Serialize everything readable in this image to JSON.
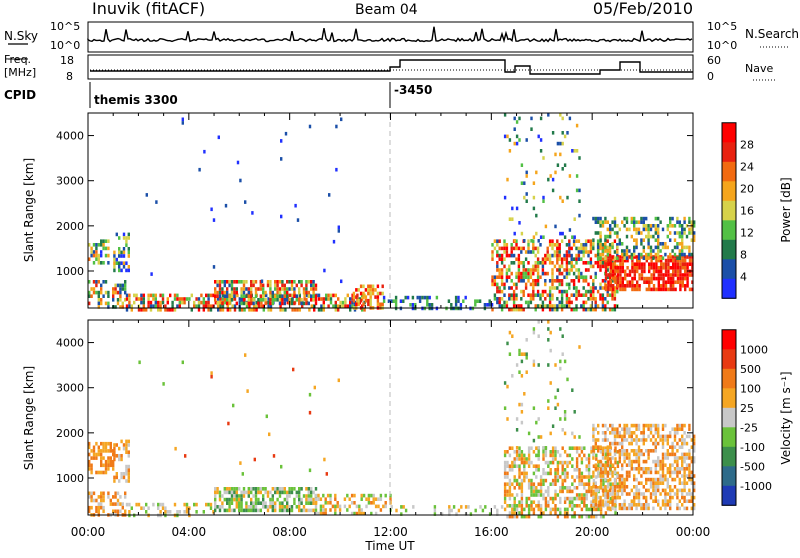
{
  "header": {
    "station_title": "Inuvik (fitACF)",
    "beam": "Beam 04",
    "date": "05/Feb/2010"
  },
  "top_panels": {
    "nsky_label": "N.Sky",
    "nsearch_label": "N.Search",
    "freq_label_line1": "Freq.",
    "freq_label_line2": "[MHz]",
    "nave_label": "Nave",
    "cpid_label": "CPID",
    "nsky_ticks": [
      "10^5",
      "10^0"
    ],
    "nsearch_ticks": [
      "10^5",
      "10^0"
    ],
    "freq_ticks": [
      "18",
      "8"
    ],
    "nave_ticks": [
      "60",
      "0"
    ],
    "cpid_entries": [
      {
        "time_hr": 0.0,
        "label": "themis 3300"
      },
      {
        "time_hr": 12.0,
        "label": "-3450"
      }
    ]
  },
  "chart_data": [
    {
      "type": "heatmap",
      "title": "",
      "xlabel": "",
      "ylabel": "Slant Range [km]",
      "xlim_hours": [
        0,
        24
      ],
      "ylim_km": [
        180,
        4500
      ],
      "x_tick_labels": [
        "00:00",
        "04:00",
        "08:00",
        "12:00",
        "16:00",
        "20:00",
        "00:00"
      ],
      "y_ticks": [
        1000,
        2000,
        3000,
        4000
      ],
      "colorbar": {
        "label": "Power [dB]",
        "ticks": [
          "28",
          "24",
          "20",
          "16",
          "12",
          "8",
          "4"
        ],
        "colors": [
          "#2030ff",
          "#1b4fa8",
          "#227a4a",
          "#52c045",
          "#d6d24a",
          "#f5a51c",
          "#f26a10",
          "#e8210f",
          "#ff0000"
        ]
      },
      "colorbar_type": "power",
      "scatter_regions": [
        {
          "t0": 0.0,
          "t1": 0.8,
          "r0": 1150,
          "r1": 1700,
          "density": 0.6,
          "palette": [
            0,
            1,
            2,
            3,
            4,
            5,
            6
          ]
        },
        {
          "t0": 1.0,
          "t1": 1.6,
          "r0": 1000,
          "r1": 1850,
          "density": 0.5,
          "palette": [
            0,
            1,
            2,
            3,
            4,
            5
          ]
        },
        {
          "t0": 0.0,
          "t1": 1.5,
          "r0": 180,
          "r1": 800,
          "density": 0.5,
          "palette": [
            1,
            2,
            3,
            4,
            5,
            6,
            7
          ]
        },
        {
          "t0": 1.5,
          "t1": 11.0,
          "r0": 180,
          "r1": 500,
          "density": 0.55,
          "palette": [
            1,
            2,
            3,
            4,
            5,
            6,
            7,
            8
          ]
        },
        {
          "t0": 5.0,
          "t1": 9.0,
          "r0": 300,
          "r1": 800,
          "density": 0.7,
          "palette": [
            1,
            2,
            3,
            4,
            5,
            6,
            7,
            8
          ]
        },
        {
          "t0": 10.5,
          "t1": 11.7,
          "r0": 180,
          "r1": 700,
          "density": 0.6,
          "palette": [
            4,
            5,
            6,
            7,
            8
          ]
        },
        {
          "t0": 11.7,
          "t1": 16.0,
          "r0": 180,
          "r1": 450,
          "density": 0.35,
          "palette": [
            0,
            1,
            2,
            3
          ]
        },
        {
          "t0": 16.0,
          "t1": 21.0,
          "r0": 180,
          "r1": 1700,
          "density": 0.55,
          "palette": [
            1,
            2,
            3,
            4,
            5,
            6,
            7,
            8
          ]
        },
        {
          "t0": 16.5,
          "t1": 19.5,
          "r0": 1700,
          "r1": 4500,
          "density": 0.07,
          "palette": [
            0,
            1,
            2,
            3,
            4,
            5
          ]
        },
        {
          "t0": 20.5,
          "t1": 24.0,
          "r0": 600,
          "r1": 1350,
          "density": 0.75,
          "palette": [
            6,
            7,
            8
          ]
        },
        {
          "t0": 20.0,
          "t1": 24.0,
          "r0": 1300,
          "r1": 2200,
          "density": 0.45,
          "palette": [
            1,
            2,
            3,
            4,
            5
          ]
        },
        {
          "t0": 2.0,
          "t1": 10.0,
          "r0": 800,
          "r1": 4400,
          "density": 0.008,
          "palette": [
            0,
            1
          ]
        }
      ]
    },
    {
      "type": "heatmap",
      "title": "",
      "xlabel": "Time UT",
      "ylabel": "Slant Range [km]",
      "xlim_hours": [
        0,
        24
      ],
      "ylim_km": [
        180,
        4500
      ],
      "x_tick_labels": [
        "00:00",
        "04:00",
        "08:00",
        "12:00",
        "16:00",
        "20:00",
        "00:00"
      ],
      "y_ticks": [
        1000,
        2000,
        3000,
        4000
      ],
      "colorbar": {
        "label": "Velocity [m s⁻¹]",
        "ticks": [
          "1000",
          "500",
          "100",
          "25",
          "-25",
          "-100",
          "-500",
          "-1000"
        ],
        "colors": [
          "#1f3bb5",
          "#2e6b8a",
          "#3c8f4b",
          "#6ac23a",
          "#c8c8c8",
          "#f5a623",
          "#f07a18",
          "#e83a12",
          "#ff0000"
        ]
      },
      "colorbar_type": "velocity",
      "scatter_regions": [
        {
          "t0": 0.0,
          "t1": 1.0,
          "r0": 1100,
          "r1": 1800,
          "density": 0.6,
          "palette": [
            5,
            6
          ]
        },
        {
          "t0": 1.0,
          "t1": 1.6,
          "r0": 900,
          "r1": 1850,
          "density": 0.5,
          "palette": [
            5,
            6,
            4
          ]
        },
        {
          "t0": 0.0,
          "t1": 1.5,
          "r0": 180,
          "r1": 700,
          "density": 0.5,
          "palette": [
            5,
            6,
            4
          ]
        },
        {
          "t0": 1.5,
          "t1": 5.0,
          "r0": 180,
          "r1": 450,
          "density": 0.3,
          "palette": [
            3,
            4,
            5
          ]
        },
        {
          "t0": 5.0,
          "t1": 9.0,
          "r0": 250,
          "r1": 800,
          "density": 0.7,
          "palette": [
            2,
            3,
            4,
            5
          ]
        },
        {
          "t0": 9.0,
          "t1": 12.0,
          "r0": 180,
          "r1": 650,
          "density": 0.45,
          "palette": [
            3,
            4,
            5,
            6
          ]
        },
        {
          "t0": 12.0,
          "t1": 16.5,
          "r0": 180,
          "r1": 400,
          "density": 0.25,
          "palette": [
            3,
            4,
            5
          ]
        },
        {
          "t0": 16.5,
          "t1": 21.0,
          "r0": 180,
          "r1": 1700,
          "density": 0.55,
          "palette": [
            3,
            4,
            5,
            6
          ]
        },
        {
          "t0": 16.5,
          "t1": 19.5,
          "r0": 1700,
          "r1": 4500,
          "density": 0.07,
          "palette": [
            2,
            3,
            4,
            5
          ]
        },
        {
          "t0": 20.0,
          "t1": 24.0,
          "r0": 300,
          "r1": 2200,
          "density": 0.55,
          "palette": [
            4,
            5,
            6
          ]
        },
        {
          "t0": 2.0,
          "t1": 10.0,
          "r0": 800,
          "r1": 4400,
          "density": 0.008,
          "palette": [
            3,
            5,
            7
          ]
        }
      ]
    }
  ]
}
